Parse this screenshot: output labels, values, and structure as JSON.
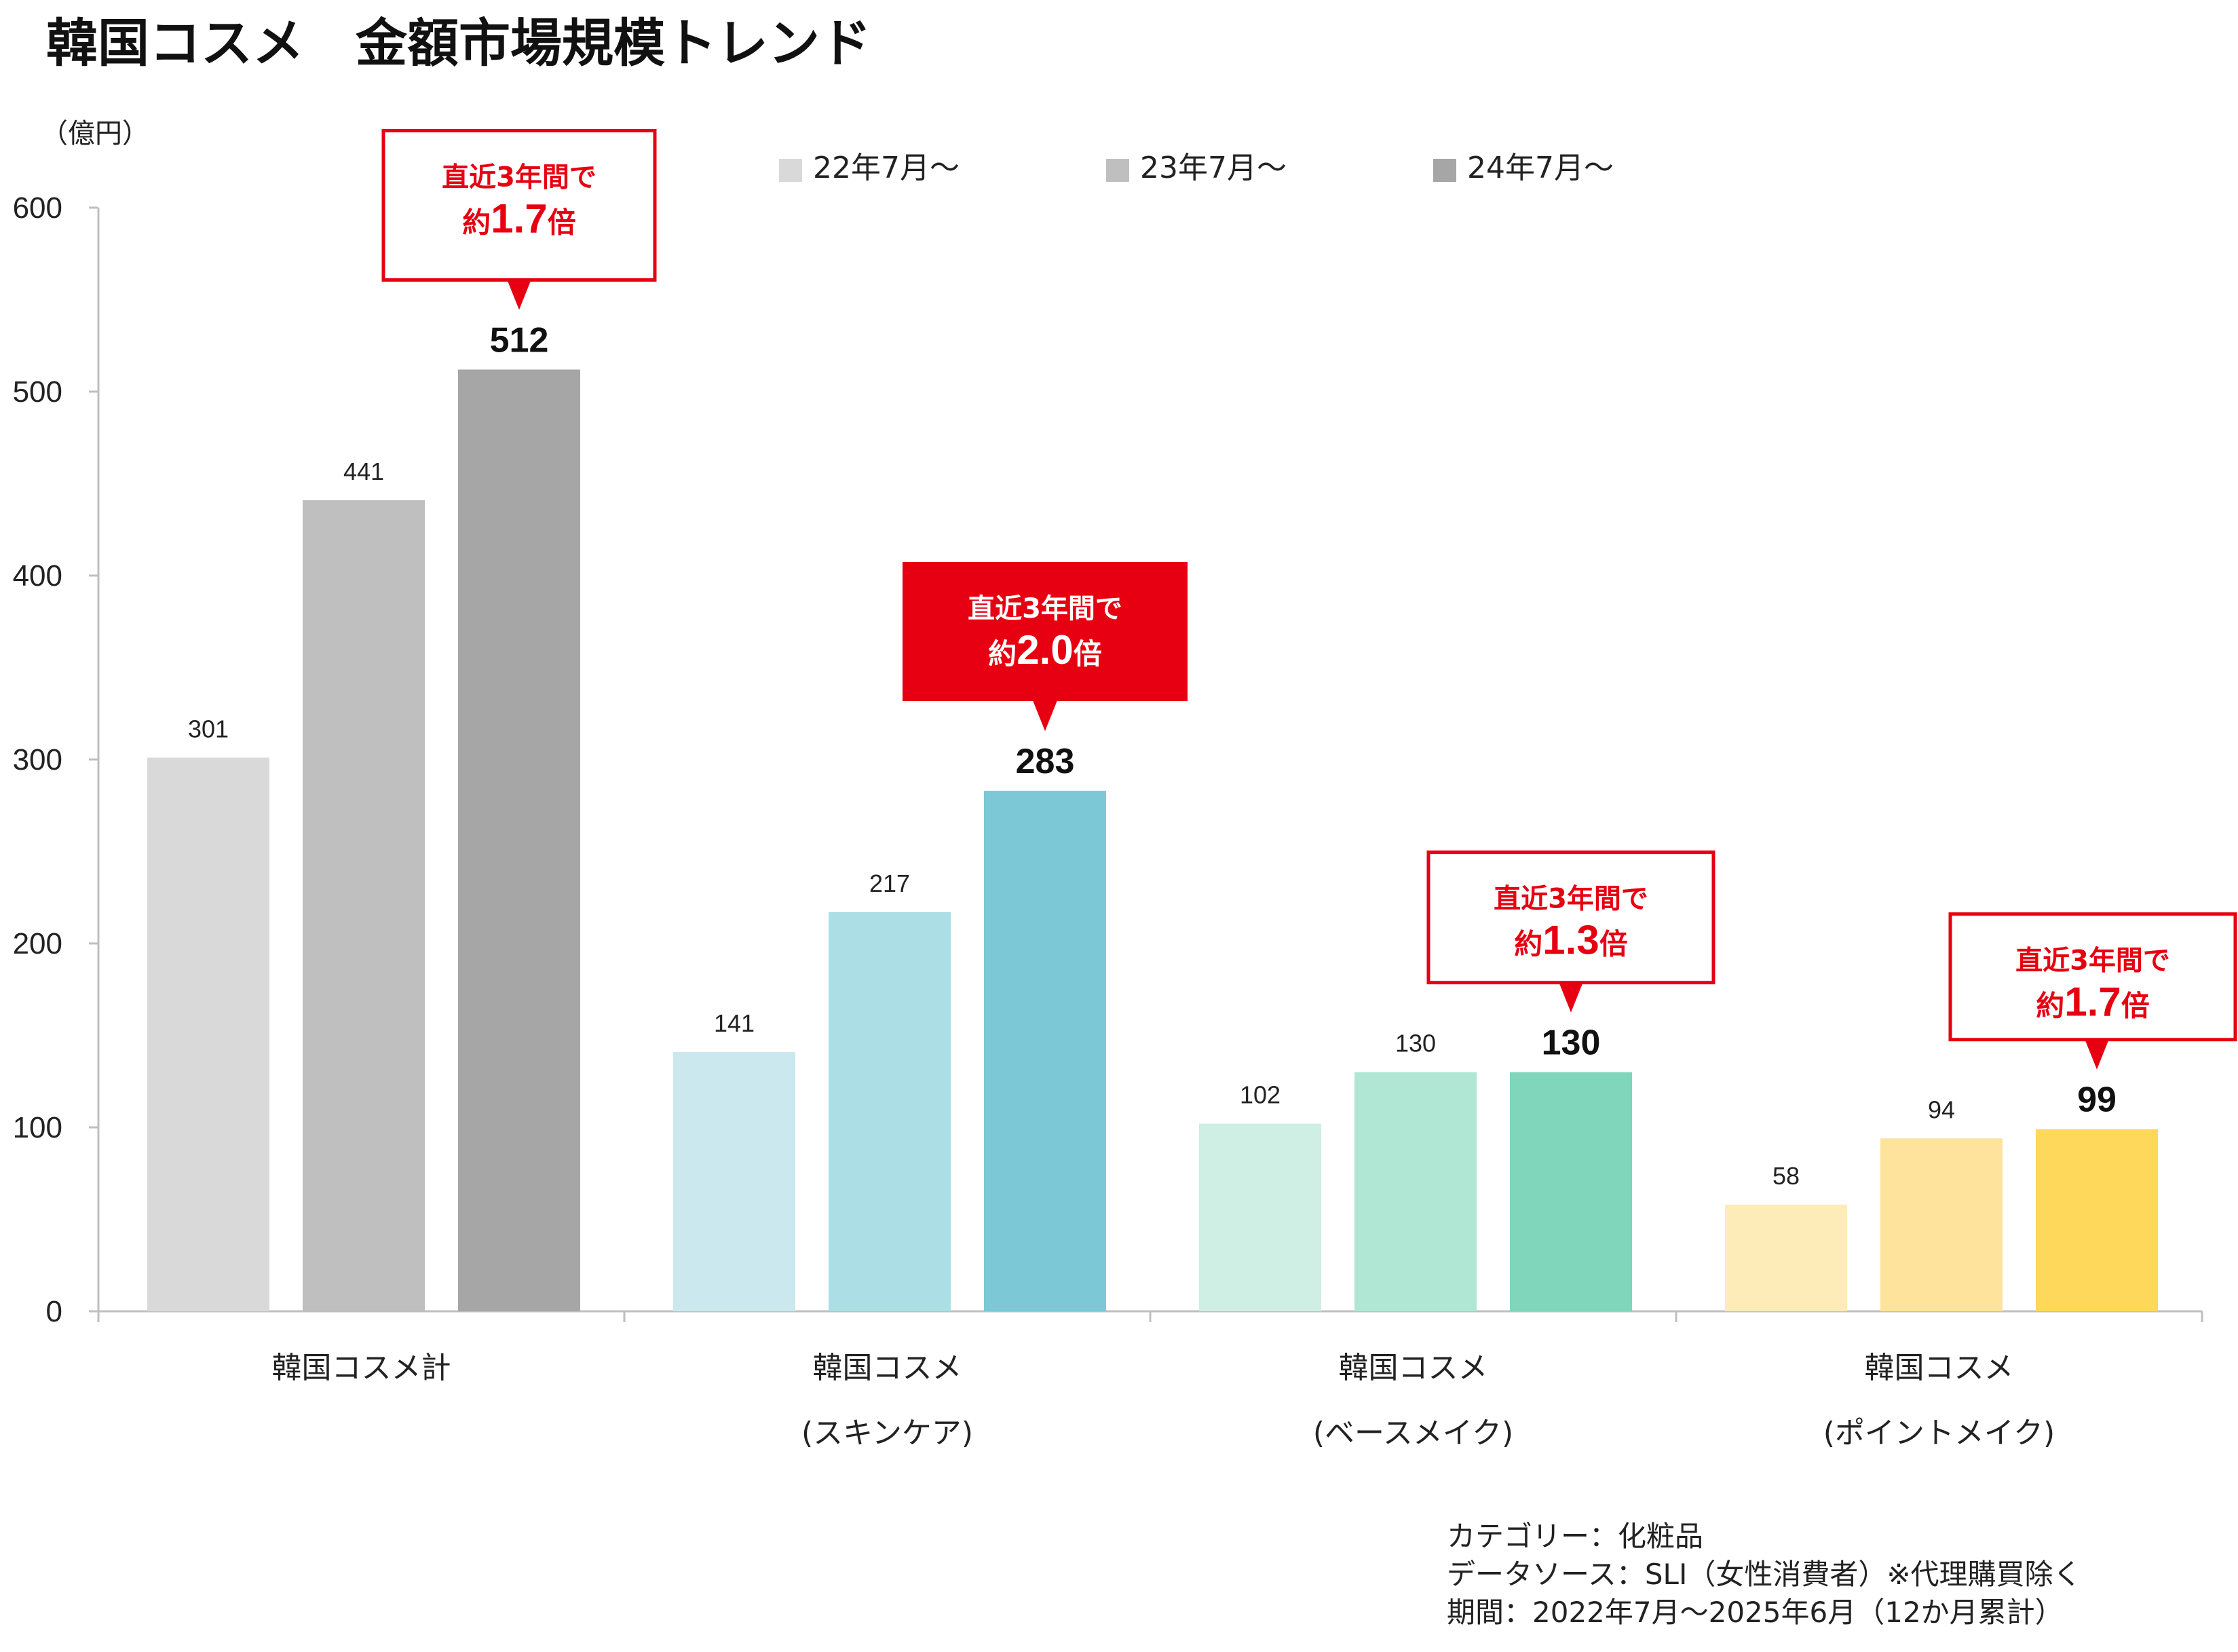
{
  "title": "韓国コスメ　金額市場規模トレンド",
  "unit": "（億円）",
  "legend": [
    "22年7月～",
    "23年7月～",
    "24年7月～"
  ],
  "callouts": [
    {
      "group": 0,
      "line1": "直近3年間で",
      "prefix": "約",
      "ratio": "1.7",
      "suffix": "倍",
      "filled": false
    },
    {
      "group": 1,
      "line1": "直近3年間で",
      "prefix": "約",
      "ratio": "2.0",
      "suffix": "倍",
      "filled": true
    },
    {
      "group": 2,
      "line1": "直近3年間で",
      "prefix": "約",
      "ratio": "1.3",
      "suffix": "倍",
      "filled": false
    },
    {
      "group": 3,
      "line1": "直近3年間で",
      "prefix": "約",
      "ratio": "1.7",
      "suffix": "倍",
      "filled": false
    }
  ],
  "notes": [
    "カテゴリー：化粧品",
    "データソース：SLI（女性消費者）※代理購買除く",
    "期間：2022年7月～2025年6月（12か月累計）"
  ],
  "chart_data": {
    "type": "bar",
    "categories": [
      [
        "韓国コスメ計"
      ],
      [
        "韓国コスメ",
        "(スキンケア)"
      ],
      [
        "韓国コスメ",
        "(ベースメイク)"
      ],
      [
        "韓国コスメ",
        "(ポイントメイク)"
      ]
    ],
    "series": [
      {
        "name": "22年7月～",
        "values": [
          301,
          141,
          102,
          58
        ]
      },
      {
        "name": "23年7月～",
        "values": [
          441,
          217,
          130,
          94
        ]
      },
      {
        "name": "24年7月～",
        "values": [
          512,
          283,
          130,
          99
        ]
      }
    ],
    "group_colors": [
      [
        "#d9d9d9",
        "#bfbfbf",
        "#a6a6a6"
      ],
      [
        "#cbe8ee",
        "#acdee6",
        "#7cc8d6"
      ],
      [
        "#cfeee4",
        "#b0e6d4",
        "#80d6bb"
      ],
      [
        "#fdebb8",
        "#fde39b",
        "#fdd85a"
      ]
    ],
    "legend_colors": [
      "#d9d9d9",
      "#bfbfbf",
      "#a6a6a6"
    ],
    "callout_color": "#e60012",
    "axis_color": "#bfbfbf",
    "ylim": [
      0,
      600
    ],
    "yticks": [
      0,
      100,
      200,
      300,
      400,
      500,
      600
    ],
    "grid": false,
    "legend_position": "top"
  }
}
